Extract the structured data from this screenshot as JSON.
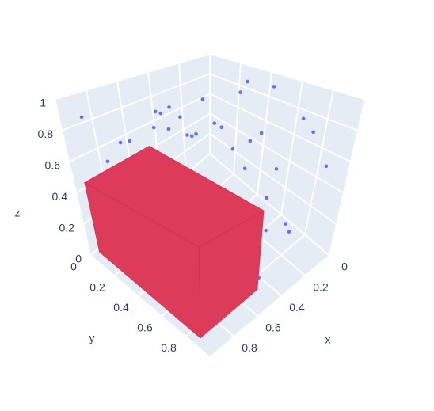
{
  "chart_data": {
    "type": "scatter3d",
    "xaxis_title": "x",
    "yaxis_title": "y",
    "zaxis_title": "z",
    "xlim": [
      0,
      1
    ],
    "ylim": [
      0,
      1
    ],
    "zlim": [
      0,
      1
    ],
    "xticks": [
      0,
      0.2,
      0.4,
      0.6,
      0.8
    ],
    "yticks": [
      0,
      0.2,
      0.4,
      0.6,
      0.8
    ],
    "zticks": [
      0,
      0.2,
      0.4,
      0.6,
      0.8,
      1
    ],
    "grid": true,
    "series": [
      {
        "color": "#636efa",
        "x": [
          0.05,
          0.1,
          0.15,
          0.2,
          0.25,
          0.3,
          0.35,
          0.4,
          0.45,
          0.5,
          0.55,
          0.6,
          0.65,
          0.7,
          0.75,
          0.8,
          0.85,
          0.9,
          0.95,
          0.12,
          0.22,
          0.32,
          0.42,
          0.52,
          0.62,
          0.72,
          0.82,
          0.92,
          0.08,
          0.18,
          0.28,
          0.38,
          0.48,
          0.58,
          0.68,
          0.78,
          0.88,
          0.03,
          0.13,
          0.23,
          0.33,
          0.43,
          0.53,
          0.63,
          0.73,
          0.83,
          0.93,
          0.27,
          0.37,
          0.57
        ],
        "y": [
          0.3,
          0.6,
          0.1,
          0.8,
          0.45,
          0.2,
          0.7,
          0.55,
          0.05,
          0.9,
          0.35,
          0.65,
          0.15,
          0.5,
          0.85,
          0.25,
          0.4,
          0.75,
          0.1,
          0.95,
          0.05,
          0.6,
          0.3,
          0.15,
          0.8,
          0.45,
          0.7,
          0.2,
          0.5,
          0.35,
          0.9,
          0.1,
          0.65,
          0.25,
          0.55,
          0.95,
          0.6,
          0.75,
          0.4,
          0.85,
          0.2,
          0.05,
          0.95,
          0.35,
          0.1,
          0.5,
          0.3,
          0.7,
          0.45,
          0.6
        ],
        "z": [
          0.9,
          0.4,
          0.7,
          0.2,
          0.95,
          0.55,
          0.8,
          0.3,
          0.6,
          0.1,
          0.85,
          0.45,
          0.25,
          0.65,
          0.35,
          0.75,
          0.15,
          0.5,
          0.9,
          0.6,
          0.4,
          0.7,
          0.2,
          0.8,
          0.3,
          0.55,
          0.1,
          0.65,
          0.95,
          0.45,
          0.25,
          0.75,
          0.35,
          0.85,
          0.5,
          0.15,
          0.6,
          0.7,
          0.3,
          0.9,
          0.55,
          0.2,
          0.4,
          0.8,
          0.65,
          0.05,
          0.5,
          0.35,
          0.75,
          0.9
        ]
      }
    ],
    "box": {
      "color": "#dc3c5a",
      "x": [
        0.47,
        0.95
      ],
      "y": [
        0.02,
        0.87
      ],
      "z": [
        0,
        0.45
      ]
    }
  }
}
